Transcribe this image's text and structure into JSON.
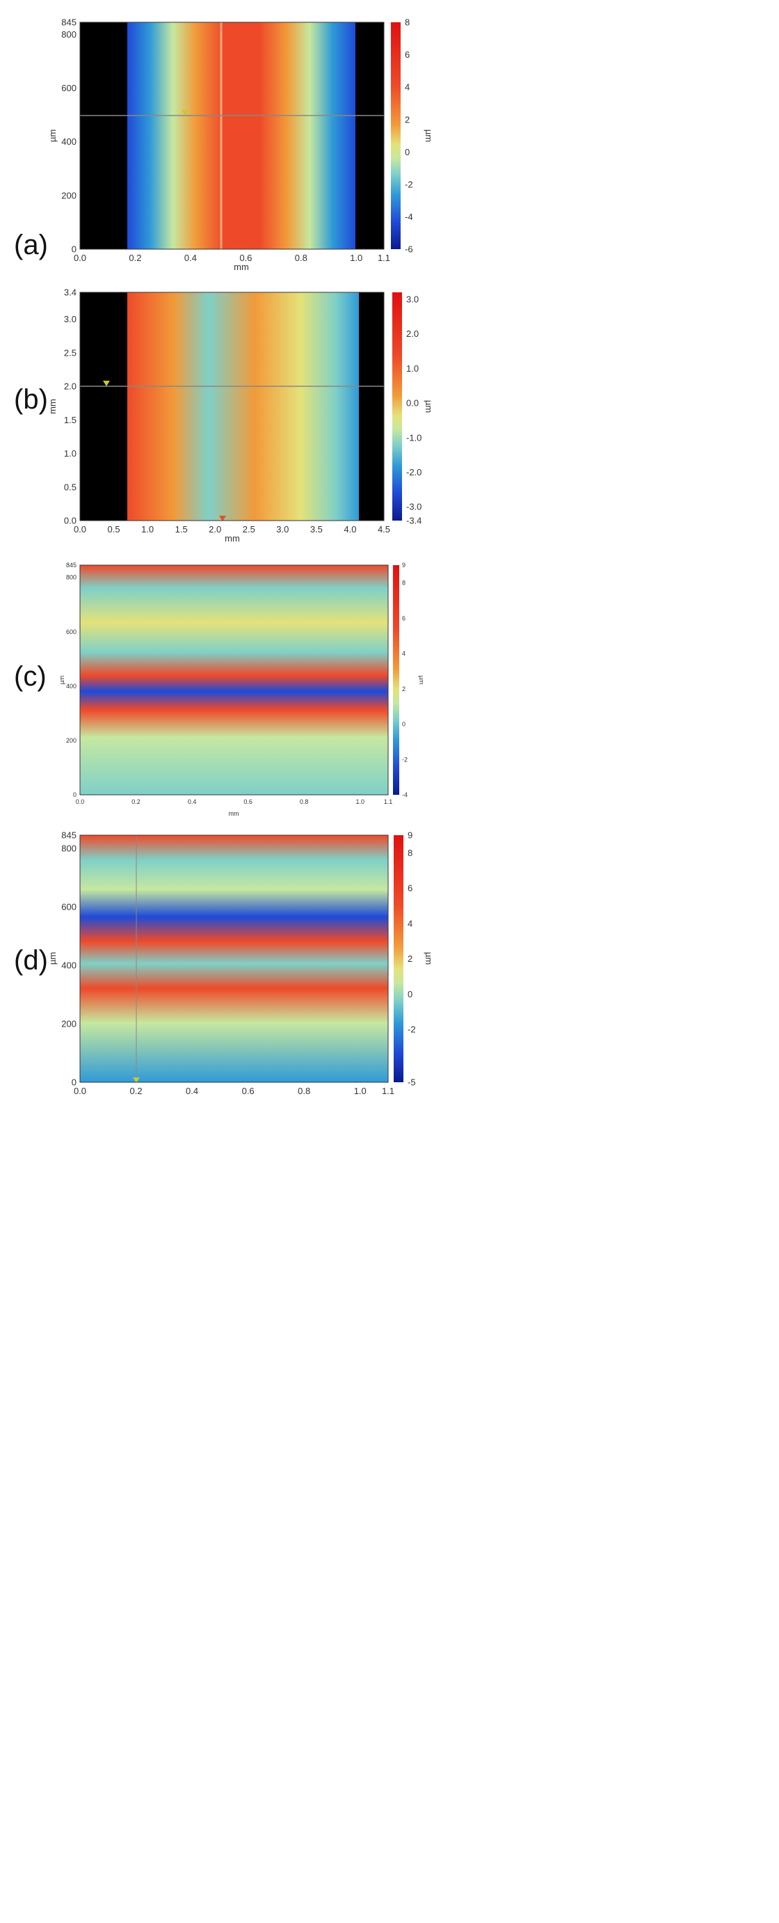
{
  "colors": {
    "scale": [
      "#0a1a8c",
      "#1f4ad8",
      "#2f9ad8",
      "#7fd0c8",
      "#c6e8a0",
      "#e4e27a",
      "#f29a3a",
      "#ee4a2a",
      "#e01010"
    ],
    "background_mask": "#000000",
    "marker_red": "#e85020",
    "marker_yellow": "#c8c830",
    "crosshair": "#888888"
  },
  "panels": [
    {
      "label": "(a)",
      "xlabel": "mm",
      "ylabel": "µm",
      "colorbar_label": "µm",
      "xticks": [
        "0.0",
        "0.2",
        "0.4",
        "0.6",
        "0.8",
        "1.0",
        "1.1"
      ],
      "yticks": [
        "0",
        "200",
        "400",
        "600",
        "800",
        "845"
      ],
      "cticks": [
        "8",
        "6",
        "4",
        "2",
        "0",
        "-2",
        "-4",
        "-6"
      ]
    },
    {
      "label": "(b)",
      "xlabel": "mm",
      "ylabel": "mm",
      "colorbar_label": "µm",
      "xticks": [
        "0.0",
        "0.5",
        "1.0",
        "1.5",
        "2.0",
        "2.5",
        "3.0",
        "3.5",
        "4.0",
        "4.5"
      ],
      "yticks": [
        "0.0",
        "0.5",
        "1.0",
        "1.5",
        "2.0",
        "2.5",
        "3.0",
        "3.4"
      ],
      "cticks": [
        "3.0",
        "2.0",
        "1.0",
        "0.0",
        "-1.0",
        "-2.0",
        "-3.0",
        "-3.4"
      ]
    },
    {
      "label": "(c)",
      "xlabel": "mm",
      "ylabel": "µm",
      "colorbar_label": "µm",
      "xticks": [
        "0.0",
        "0.2",
        "0.4",
        "0.6",
        "0.8",
        "1.0",
        "1.1"
      ],
      "yticks": [
        "0",
        "200",
        "400",
        "600",
        "800",
        "845"
      ],
      "cticks": [
        "9",
        "8",
        "6",
        "4",
        "2",
        "0",
        "-2",
        "-4"
      ]
    },
    {
      "label": "(d)",
      "xlabel": "",
      "ylabel": "µm",
      "colorbar_label": "µm",
      "xticks": [
        "0.0",
        "0.2",
        "0.4",
        "0.6",
        "0.8",
        "1.0",
        "1.1"
      ],
      "yticks": [
        "0",
        "200",
        "400",
        "600",
        "800",
        "845"
      ],
      "cticks": [
        "9",
        "8",
        "6",
        "4",
        "2",
        "0",
        "-2",
        "-5"
      ]
    }
  ]
}
